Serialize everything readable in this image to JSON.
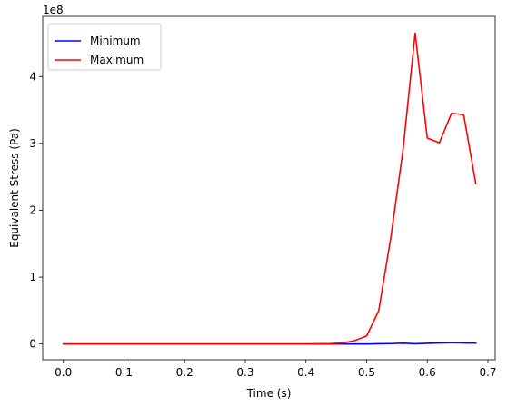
{
  "chart_data": {
    "type": "line",
    "xlabel": "Time (s)",
    "ylabel": "Equivalent Stress (Pa)",
    "y_offset_label": "1e8",
    "xlim": [
      -0.034,
      0.712
    ],
    "ylim": [
      -0.235,
      4.9
    ],
    "y_scale_factor": 100000000,
    "x_ticks": [
      0.0,
      0.1,
      0.2,
      0.3,
      0.4,
      0.5,
      0.6,
      0.7
    ],
    "x_tick_labels": [
      "0.0",
      "0.1",
      "0.2",
      "0.3",
      "0.4",
      "0.5",
      "0.6",
      "0.7"
    ],
    "y_ticks": [
      0,
      1,
      2,
      3,
      4
    ],
    "y_tick_labels": [
      "0",
      "1",
      "2",
      "3",
      "4"
    ],
    "legend_placement": "upper-left",
    "grid": false,
    "series": [
      {
        "name": "Minimum",
        "color": "#0000ff",
        "x": [
          0.0,
          0.1,
          0.2,
          0.3,
          0.4,
          0.44,
          0.46,
          0.48,
          0.5,
          0.52,
          0.54,
          0.56,
          0.58,
          0.6,
          0.62,
          0.64,
          0.66,
          0.68
        ],
        "y": [
          0.0,
          0.0,
          0.0,
          0.0,
          0.0,
          0.0,
          0.0,
          0.0,
          0.0,
          0.003,
          0.006,
          0.012,
          0.004,
          0.01,
          0.016,
          0.018,
          0.016,
          0.014
        ]
      },
      {
        "name": "Maximum",
        "color": "#ff0000",
        "x": [
          0.0,
          0.1,
          0.2,
          0.3,
          0.4,
          0.44,
          0.46,
          0.48,
          0.5,
          0.52,
          0.54,
          0.56,
          0.58,
          0.6,
          0.62,
          0.64,
          0.66,
          0.68
        ],
        "y": [
          0.0,
          0.0,
          0.0,
          0.0,
          0.0,
          0.005,
          0.015,
          0.05,
          0.12,
          0.5,
          1.6,
          2.9,
          4.65,
          3.08,
          3.01,
          3.45,
          3.43,
          2.4
        ]
      }
    ]
  }
}
